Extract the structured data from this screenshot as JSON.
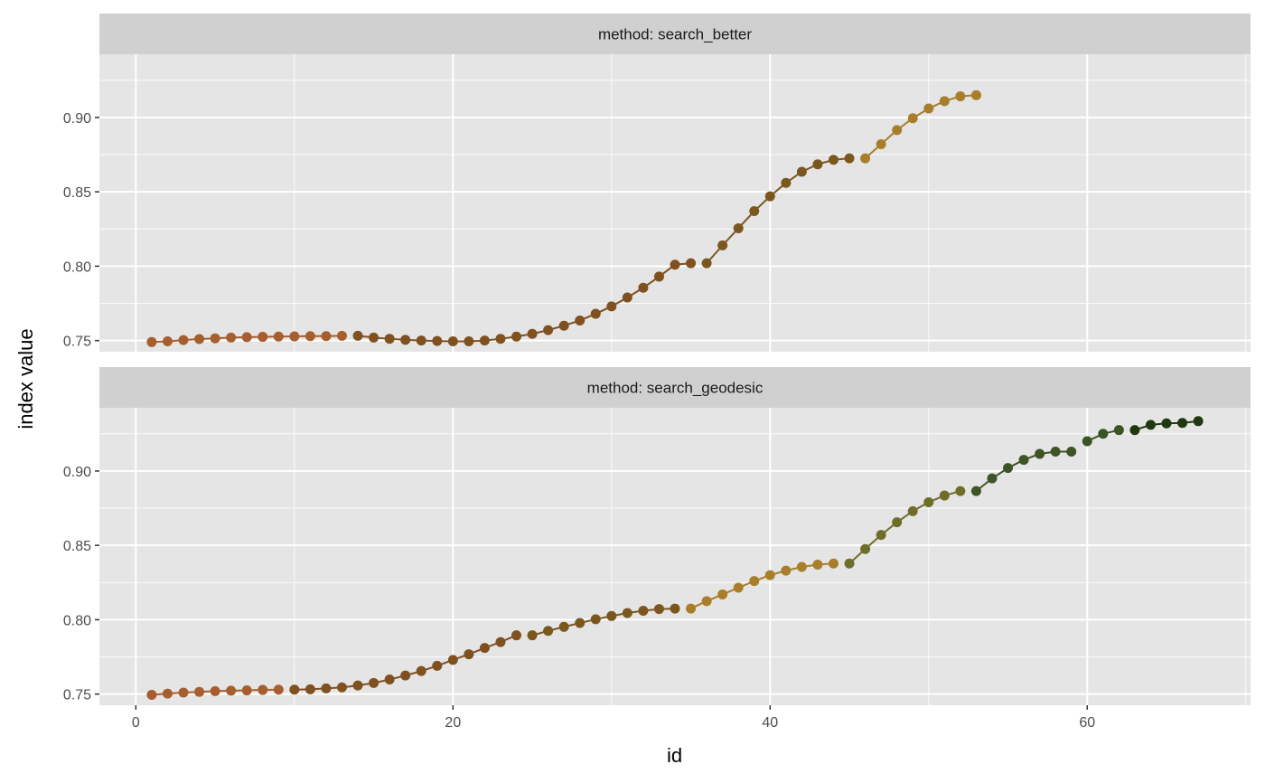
{
  "chart_data": {
    "type": "line",
    "xlabel": "id",
    "ylabel": "index value",
    "xlim": [
      -2.3,
      70.3
    ],
    "ylim": [
      0.7425,
      0.9425
    ],
    "x_ticks": [
      0,
      20,
      40,
      60
    ],
    "x_tick_labels": [
      "0",
      "20",
      "40",
      "60"
    ],
    "y_ticks": [
      0.75,
      0.8,
      0.85,
      0.9
    ],
    "y_tick_labels": [
      "0.75",
      "0.80",
      "0.85",
      "0.90"
    ],
    "grid": true,
    "colors": {
      "panel_bg": "#e5e5e5",
      "strip_bg": "#d0d0d0",
      "grid": "#ffffff"
    },
    "facets": [
      {
        "strip_label": "method: search_better",
        "segments": [
          {
            "color": "#a65e2e",
            "x": [
              1,
              2,
              3,
              4,
              5,
              6,
              7,
              8,
              9,
              10,
              11,
              12,
              13
            ],
            "y": [
              0.749,
              0.7495,
              0.7503,
              0.751,
              0.7515,
              0.752,
              0.7523,
              0.7525,
              0.7527,
              0.7528,
              0.753,
              0.753,
              0.7532
            ]
          },
          {
            "color": "#7f5020",
            "x": [
              14,
              15,
              16,
              17,
              18,
              19,
              20,
              21,
              22,
              23,
              24,
              25,
              26,
              27,
              28,
              29,
              30,
              31,
              32,
              33,
              34,
              35
            ],
            "y": [
              0.7532,
              0.752,
              0.7512,
              0.7505,
              0.75,
              0.7497,
              0.7495,
              0.7495,
              0.75,
              0.7512,
              0.7527,
              0.7545,
              0.757,
              0.76,
              0.7635,
              0.768,
              0.773,
              0.779,
              0.7855,
              0.793,
              0.801,
              0.802
            ]
          },
          {
            "color": "#7a571f",
            "x": [
              36,
              37,
              38,
              39,
              40,
              41,
              42,
              43,
              44,
              45
            ],
            "y": [
              0.802,
              0.814,
              0.8255,
              0.837,
              0.847,
              0.856,
              0.8635,
              0.8685,
              0.8715,
              0.8725
            ]
          },
          {
            "color": "#a87e2a",
            "x": [
              46,
              47,
              48,
              49,
              50,
              51,
              52,
              53
            ],
            "y": [
              0.8725,
              0.882,
              0.8915,
              0.8995,
              0.906,
              0.911,
              0.9142,
              0.915
            ]
          }
        ]
      },
      {
        "strip_label": "method: search_geodesic",
        "segments": [
          {
            "color": "#a65e2e",
            "x": [
              1,
              2,
              3,
              4,
              5,
              6,
              7,
              8,
              9
            ],
            "y": [
              0.7495,
              0.7503,
              0.751,
              0.7515,
              0.752,
              0.7523,
              0.7525,
              0.7528,
              0.753
            ]
          },
          {
            "color": "#7f5020",
            "x": [
              10,
              11,
              12,
              13,
              14,
              15,
              16,
              17,
              18,
              19,
              20,
              21,
              22,
              23,
              24
            ],
            "y": [
              0.753,
              0.7532,
              0.7538,
              0.7545,
              0.7558,
              0.7575,
              0.7598,
              0.7625,
              0.7655,
              0.769,
              0.773,
              0.7768,
              0.781,
              0.785,
              0.7895
            ]
          },
          {
            "color": "#7a571f",
            "x": [
              25,
              26,
              27,
              28,
              29,
              30,
              31,
              32,
              33,
              34
            ],
            "y": [
              0.7895,
              0.7925,
              0.7952,
              0.7978,
              0.8003,
              0.8025,
              0.8045,
              0.806,
              0.8072,
              0.8075
            ]
          },
          {
            "color": "#a87e2a",
            "x": [
              35,
              36,
              37,
              38,
              39,
              40,
              41,
              42,
              43,
              44
            ],
            "y": [
              0.8075,
              0.8125,
              0.817,
              0.8215,
              0.826,
              0.83,
              0.833,
              0.8355,
              0.837,
              0.8378
            ]
          },
          {
            "color": "#6e6e2a",
            "x": [
              45,
              46,
              47,
              48,
              49,
              50,
              51,
              52
            ],
            "y": [
              0.8378,
              0.8475,
              0.857,
              0.8655,
              0.873,
              0.879,
              0.8835,
              0.8865
            ]
          },
          {
            "color": "#3e5426",
            "x": [
              53,
              54,
              55,
              56,
              57,
              58,
              59
            ],
            "y": [
              0.8865,
              0.895,
              0.902,
              0.9075,
              0.9115,
              0.913,
              0.913
            ]
          },
          {
            "color": "#3a5424",
            "x": [
              60,
              61,
              62
            ],
            "y": [
              0.92,
              0.925,
              0.9275
            ]
          },
          {
            "color": "#203810",
            "x": [
              63,
              64,
              65,
              66,
              67
            ],
            "y": [
              0.9275,
              0.931,
              0.932,
              0.9323,
              0.9335
            ]
          }
        ]
      }
    ]
  }
}
